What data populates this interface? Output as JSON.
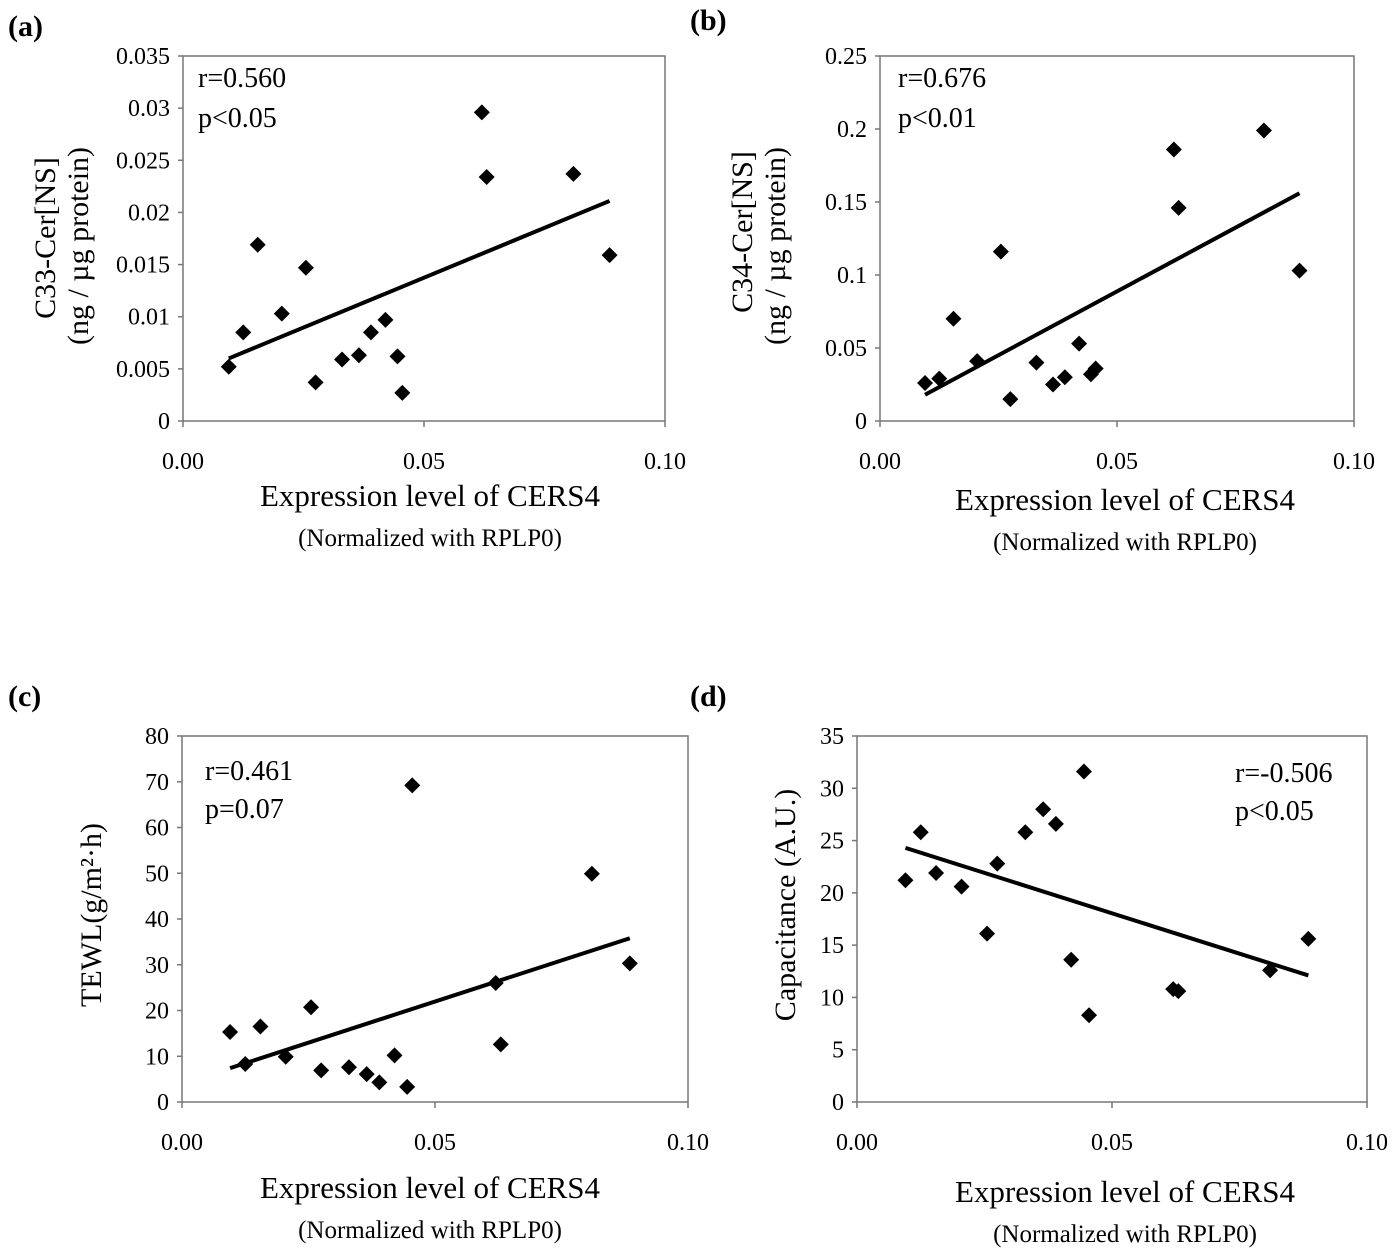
{
  "charts": [
    {
      "letter": "(a)",
      "ylabel": "C33-Cer[NS]",
      "ylabel2": "(ng / µg protein)",
      "xlabel": "Expression level of CERS4",
      "xsub": "(Normalized with RPLP0)",
      "stat1": "r=0.560",
      "stat2": "p<0.05"
    },
    {
      "letter": "(b)",
      "ylabel": "C34-Cer[NS]",
      "ylabel2": "(ng / µg protein)",
      "xlabel": "Expression level of CERS4",
      "xsub": "(Normalized with RPLP0)",
      "stat1": "r=0.676",
      "stat2": "p<0.01"
    },
    {
      "letter": "(c)",
      "ylabel": "TEWL(g/m²·h)",
      "ylabel2": "",
      "xlabel": "Expression level of CERS4",
      "xsub": "(Normalized with RPLP0)",
      "stat1": "r=0.461",
      "stat2": "p=0.07"
    },
    {
      "letter": "(d)",
      "ylabel": "Capacitance (A.U.)",
      "ylabel2": "",
      "xlabel": "Expression level of CERS4",
      "xsub": "(Normalized with RPLP0)",
      "stat1": "r=-0.506",
      "stat2": "p<0.05"
    }
  ],
  "chart_data": [
    {
      "type": "scatter",
      "title": "",
      "xlabel": "Expression level of CERS4 (Normalized with RPLP0)",
      "ylabel": "C33-Cer[NS] (ng / µg protein)",
      "xlim": [
        0,
        0.1
      ],
      "ylim": [
        0,
        0.035
      ],
      "xticks": [
        "0.00",
        "0.05",
        "0.10"
      ],
      "yticks": [
        "0",
        "0.005",
        "0.01",
        "0.015",
        "0.02",
        "0.025",
        "0.03",
        "0.035"
      ],
      "marker": "diamond",
      "x": [
        0.0095,
        0.0125,
        0.0155,
        0.0205,
        0.0255,
        0.0275,
        0.033,
        0.0365,
        0.039,
        0.042,
        0.0445,
        0.0455,
        0.062,
        0.063,
        0.081,
        0.0885
      ],
      "y": [
        0.0052,
        0.0085,
        0.0169,
        0.0103,
        0.0147,
        0.0037,
        0.0059,
        0.0063,
        0.0085,
        0.0097,
        0.0062,
        0.0027,
        0.0296,
        0.0234,
        0.0237,
        0.0159
      ],
      "trendline": {
        "x": [
          0.0095,
          0.0885
        ],
        "y": [
          0.006,
          0.0211
        ]
      },
      "annotations": [
        "r=0.560",
        "p<0.05"
      ]
    },
    {
      "type": "scatter",
      "title": "",
      "xlabel": "Expression level of CERS4 (Normalized with RPLP0)",
      "ylabel": "C34-Cer[NS] (ng / µg protein)",
      "xlim": [
        0,
        0.1
      ],
      "ylim": [
        0,
        0.25
      ],
      "xticks": [
        "0.00",
        "0.05",
        "0.10"
      ],
      "yticks": [
        "0",
        "0.05",
        "0.1",
        "0.15",
        "0.2",
        "0.25"
      ],
      "marker": "diamond",
      "x": [
        0.0095,
        0.0125,
        0.0155,
        0.0205,
        0.0255,
        0.0275,
        0.033,
        0.0365,
        0.039,
        0.042,
        0.0445,
        0.0455,
        0.062,
        0.063,
        0.081,
        0.0885
      ],
      "y": [
        0.026,
        0.029,
        0.07,
        0.041,
        0.116,
        0.015,
        0.04,
        0.025,
        0.03,
        0.053,
        0.032,
        0.036,
        0.186,
        0.146,
        0.199,
        0.103
      ],
      "trendline": {
        "x": [
          0.0095,
          0.0885
        ],
        "y": [
          0.018,
          0.156
        ]
      },
      "annotations": [
        "r=0.676",
        "p<0.01"
      ]
    },
    {
      "type": "scatter",
      "title": "",
      "xlabel": "Expression level of CERS4 (Normalized with RPLP0)",
      "ylabel": "TEWL(g/m²·h)",
      "xlim": [
        0,
        0.1
      ],
      "ylim": [
        0,
        80
      ],
      "xticks": [
        "0.00",
        "0.05",
        "0.10"
      ],
      "yticks": [
        "0",
        "10",
        "20",
        "30",
        "40",
        "50",
        "60",
        "70",
        "80"
      ],
      "marker": "diamond",
      "x": [
        0.0095,
        0.0125,
        0.0155,
        0.0205,
        0.0255,
        0.0275,
        0.033,
        0.0365,
        0.039,
        0.042,
        0.0445,
        0.0455,
        0.062,
        0.063,
        0.081,
        0.0885
      ],
      "y": [
        15.3,
        8.3,
        16.5,
        9.9,
        20.7,
        6.9,
        7.6,
        6.1,
        4.3,
        10.2,
        3.3,
        69.2,
        26.0,
        12.6,
        49.9,
        30.3
      ],
      "trendline": {
        "x": [
          0.0095,
          0.0885
        ],
        "y": [
          7.4,
          35.8
        ]
      },
      "annotations": [
        "r=0.461",
        "p=0.07"
      ]
    },
    {
      "type": "scatter",
      "title": "",
      "xlabel": "Expression level of CERS4 (Normalized with RPLP0)",
      "ylabel": "Capacitance (A.U.)",
      "xlim": [
        0,
        0.1
      ],
      "ylim": [
        0,
        35
      ],
      "xticks": [
        "0.00",
        "0.05",
        "0.10"
      ],
      "yticks": [
        "0",
        "5",
        "10",
        "15",
        "20",
        "25",
        "30",
        "35"
      ],
      "marker": "diamond",
      "x": [
        0.0095,
        0.0125,
        0.0155,
        0.0205,
        0.0255,
        0.0275,
        0.033,
        0.0365,
        0.039,
        0.042,
        0.0445,
        0.0455,
        0.062,
        0.063,
        0.081,
        0.0885
      ],
      "y": [
        21.2,
        25.8,
        21.9,
        20.6,
        16.1,
        22.8,
        25.8,
        28.0,
        26.6,
        13.6,
        31.6,
        8.3,
        10.8,
        10.6,
        12.6,
        15.6
      ],
      "trendline": {
        "x": [
          0.0095,
          0.0885
        ],
        "y": [
          24.3,
          12.1
        ]
      },
      "annotations": [
        "r=-0.506",
        "p<0.05"
      ]
    }
  ]
}
